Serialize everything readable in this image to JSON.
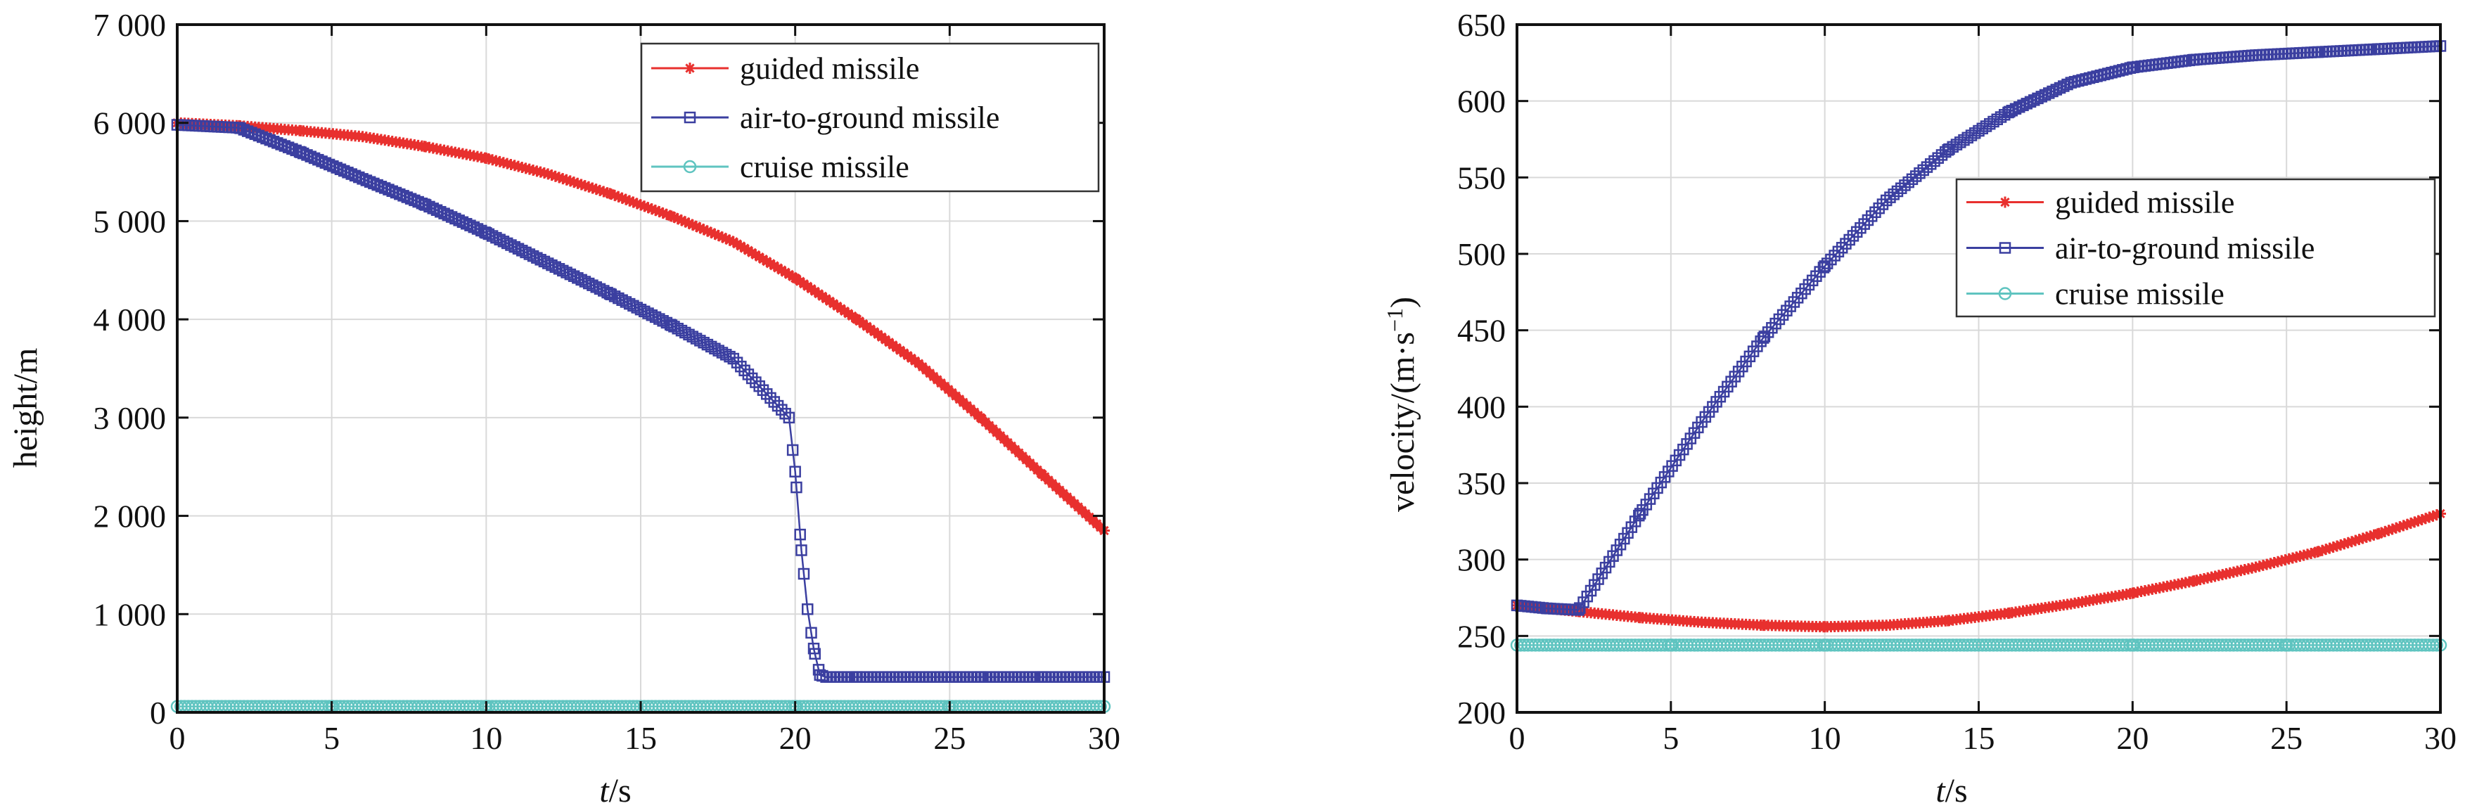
{
  "figure": {
    "left_panel": {
      "ylabel": "height/m",
      "xlabel_italic": "t",
      "xlabel_unit": "/s"
    },
    "right_panel": {
      "ylabel": "velocity/(m·s",
      "ylabel_sup": "−1",
      "ylabel_close": ")",
      "xlabel_italic": "t",
      "xlabel_unit": "/s"
    }
  },
  "chart_data": [
    {
      "type": "line",
      "title": "",
      "xlabel": "t/s",
      "ylabel": "height/m",
      "xlim": [
        0,
        30
      ],
      "ylim": [
        0,
        7000
      ],
      "xticks": [
        0,
        5,
        10,
        15,
        20,
        25,
        30
      ],
      "xtick_labels": [
        "0",
        "5",
        "10",
        "15",
        "20",
        "25",
        "30"
      ],
      "yticks": [
        0,
        1000,
        2000,
        3000,
        4000,
        5000,
        6000,
        7000
      ],
      "ytick_labels": [
        "0",
        "1 000",
        "2 000",
        "3 000",
        "4 000",
        "5 000",
        "6 000",
        "7 000"
      ],
      "grid": true,
      "legend_position": "top-right",
      "series": [
        {
          "name": "guided missile",
          "color": "#e8302e",
          "marker": "star",
          "x": [
            0,
            2,
            4,
            6,
            8,
            10,
            12,
            14,
            16,
            18,
            20,
            22,
            24,
            26,
            28,
            30
          ],
          "y": [
            6000,
            5970,
            5920,
            5860,
            5760,
            5640,
            5480,
            5280,
            5050,
            4790,
            4420,
            4000,
            3550,
            3000,
            2420,
            1850
          ]
        },
        {
          "name": "air-to-ground missile",
          "color": "#3b3fa0",
          "marker": "square",
          "x": [
            0,
            2,
            4,
            6,
            8,
            10,
            12,
            14,
            16,
            18,
            19.8,
            20.0,
            20.2,
            20.4,
            20.6,
            20.8,
            21,
            22,
            24,
            26,
            28,
            30
          ],
          "y": [
            5980,
            5950,
            5700,
            5430,
            5170,
            4880,
            4570,
            4260,
            3940,
            3600,
            3000,
            2450,
            1650,
            1050,
            650,
            380,
            360,
            360,
            360,
            360,
            360,
            360
          ]
        },
        {
          "name": "cruise missile",
          "color": "#5fc4c0",
          "marker": "circle",
          "x": [
            0,
            5,
            10,
            15,
            20,
            25,
            30
          ],
          "y": [
            60,
            60,
            60,
            60,
            60,
            60,
            60
          ]
        }
      ]
    },
    {
      "type": "line",
      "title": "",
      "xlabel": "t/s",
      "ylabel": "velocity/(m·s−1)",
      "xlim": [
        0,
        30
      ],
      "ylim": [
        200,
        650
      ],
      "xticks": [
        0,
        5,
        10,
        15,
        20,
        25,
        30
      ],
      "xtick_labels": [
        "0",
        "5",
        "10",
        "15",
        "20",
        "25",
        "30"
      ],
      "yticks": [
        200,
        250,
        300,
        350,
        400,
        450,
        500,
        550,
        600,
        650
      ],
      "ytick_labels": [
        "200",
        "250",
        "300",
        "350",
        "400",
        "450",
        "500",
        "550",
        "600",
        "650"
      ],
      "grid": true,
      "legend_position": "upper-right",
      "series": [
        {
          "name": "guided missile",
          "color": "#e8302e",
          "marker": "star",
          "x": [
            0,
            2,
            4,
            6,
            8,
            10,
            12,
            14,
            16,
            18,
            20,
            22,
            24,
            26,
            28,
            30
          ],
          "y": [
            270,
            266,
            262,
            259,
            257,
            256,
            257,
            260,
            265,
            271,
            278,
            286,
            295,
            305,
            317,
            330
          ]
        },
        {
          "name": "air-to-ground missile",
          "color": "#3b3fa0",
          "marker": "square",
          "x": [
            0,
            1,
            2,
            4,
            6,
            8,
            10,
            12,
            14,
            16,
            18,
            20,
            22,
            24,
            26,
            28,
            30
          ],
          "y": [
            270,
            268,
            267,
            330,
            390,
            445,
            492,
            535,
            568,
            593,
            612,
            622,
            627,
            630,
            632,
            634,
            636
          ]
        },
        {
          "name": "cruise missile",
          "color": "#5fc4c0",
          "marker": "circle",
          "x": [
            0,
            5,
            10,
            15,
            20,
            25,
            30
          ],
          "y": [
            244,
            244,
            244,
            244,
            244,
            244,
            244
          ]
        }
      ]
    }
  ]
}
